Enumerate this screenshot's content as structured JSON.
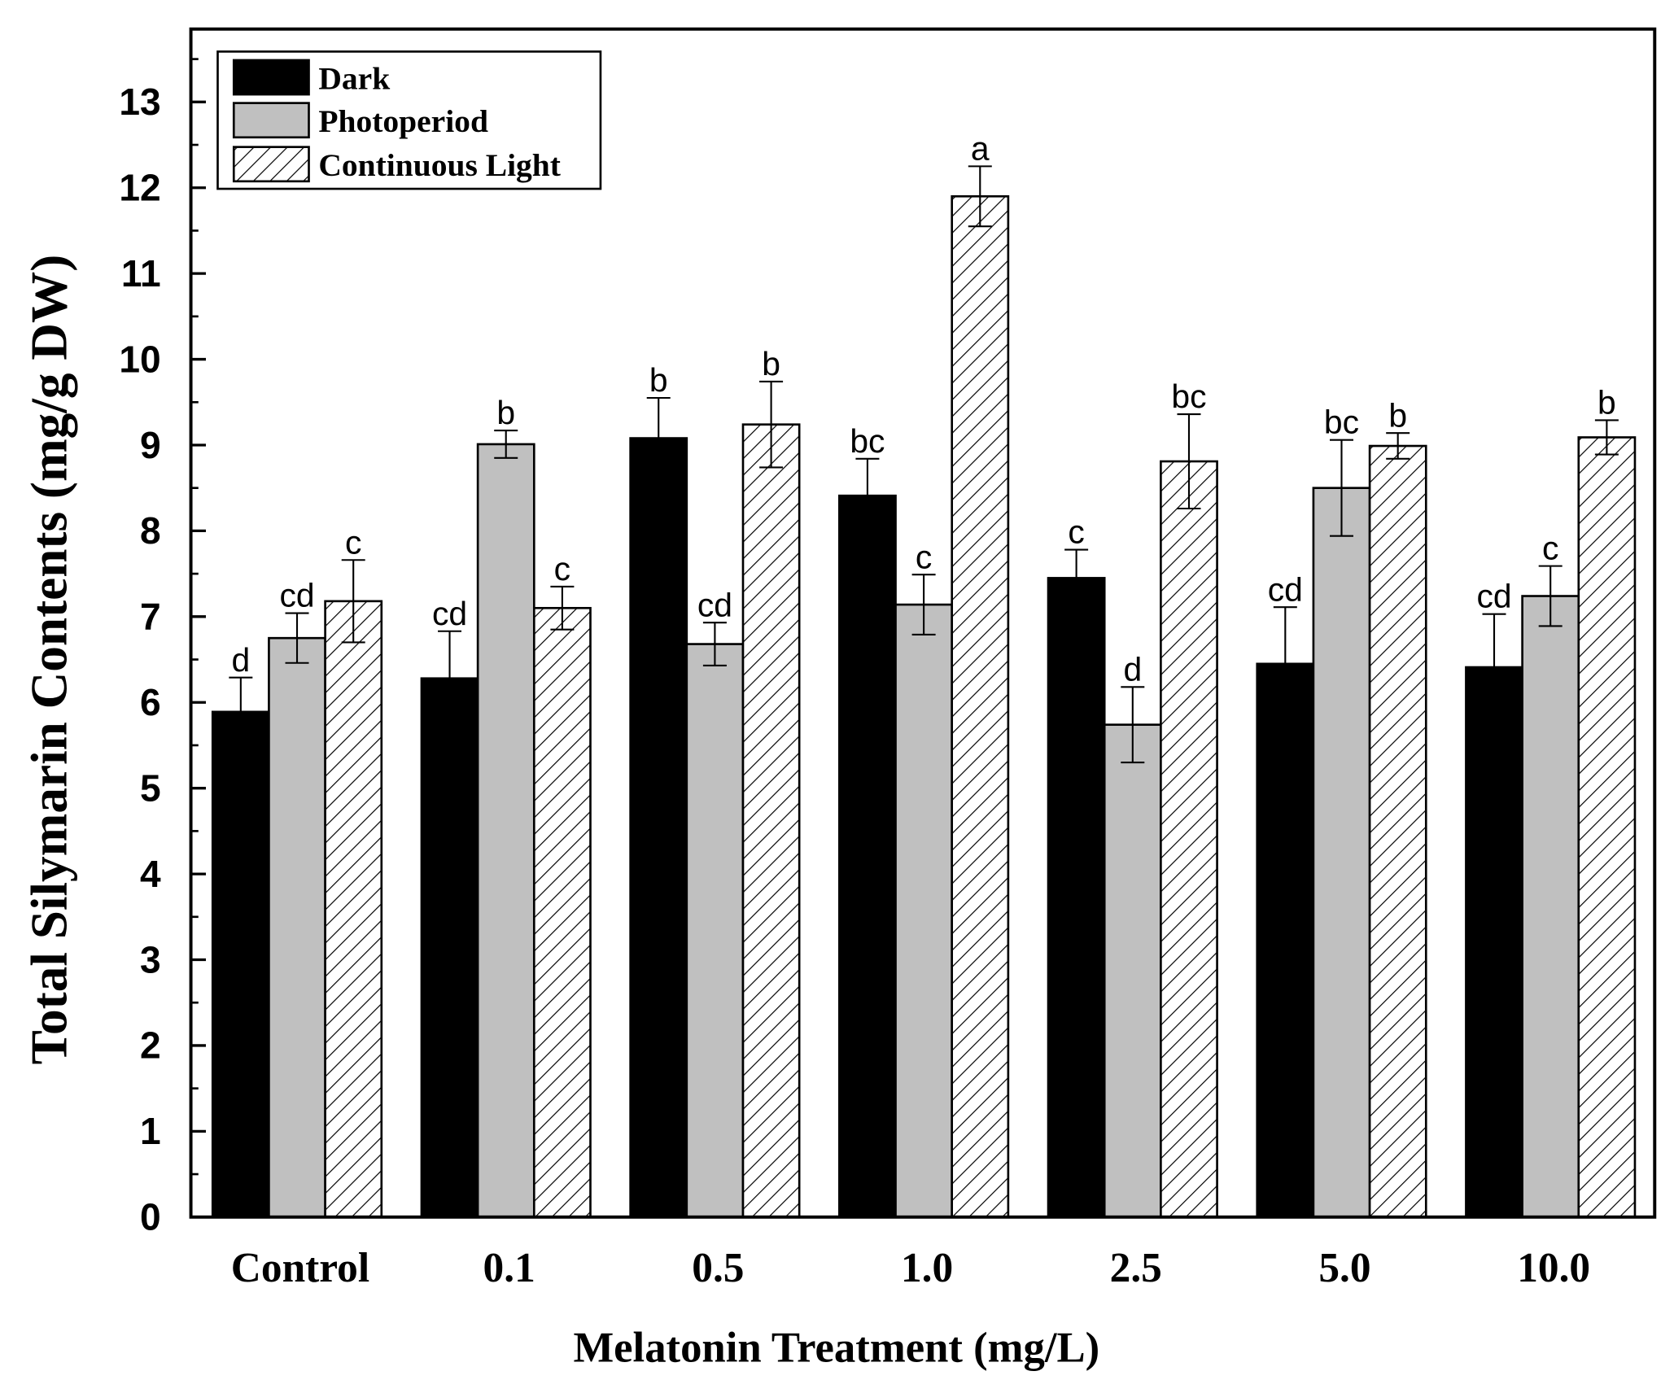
{
  "chart_data": {
    "type": "bar",
    "title": "",
    "xlabel": "Melatonin Treatment (mg/L)",
    "ylabel": "Total Silymarin Contents (mg/g DW)",
    "categories": [
      "Control",
      "0.1",
      "0.5",
      "1.0",
      "2.5",
      "5.0",
      "10.0"
    ],
    "ylim": [
      0,
      13.85
    ],
    "yticks": [
      0,
      1,
      2,
      3,
      4,
      5,
      6,
      7,
      8,
      9,
      10,
      11,
      12,
      13
    ],
    "grid": false,
    "legend_position": "top-left",
    "series": [
      {
        "name": "Dark",
        "color": "#000000",
        "hatched": false,
        "values": [
          5.89,
          6.28,
          9.08,
          8.41,
          7.45,
          6.45,
          6.41
        ],
        "errors": [
          0.4,
          0.55,
          0.47,
          0.43,
          0.33,
          0.66,
          0.62
        ],
        "letters": [
          "d",
          "cd",
          "b",
          "bc",
          "c",
          "cd",
          "cd"
        ]
      },
      {
        "name": "Photoperiod",
        "color": "#c0c0c0",
        "hatched": false,
        "values": [
          6.75,
          9.01,
          6.68,
          7.14,
          5.74,
          8.5,
          7.24
        ],
        "errors": [
          0.29,
          0.16,
          0.25,
          0.35,
          0.44,
          0.56,
          0.35
        ],
        "letters": [
          "cd",
          "b",
          "cd",
          "c",
          "d",
          "bc",
          "c"
        ]
      },
      {
        "name": "Continuous Light",
        "color": "#ffffff",
        "hatched": true,
        "values": [
          7.18,
          7.1,
          9.24,
          11.9,
          8.81,
          8.99,
          9.09
        ],
        "errors": [
          0.48,
          0.25,
          0.5,
          0.35,
          0.55,
          0.15,
          0.2
        ],
        "letters": [
          "c",
          "c",
          "b",
          "a",
          "bc",
          "b",
          "b"
        ]
      }
    ]
  }
}
